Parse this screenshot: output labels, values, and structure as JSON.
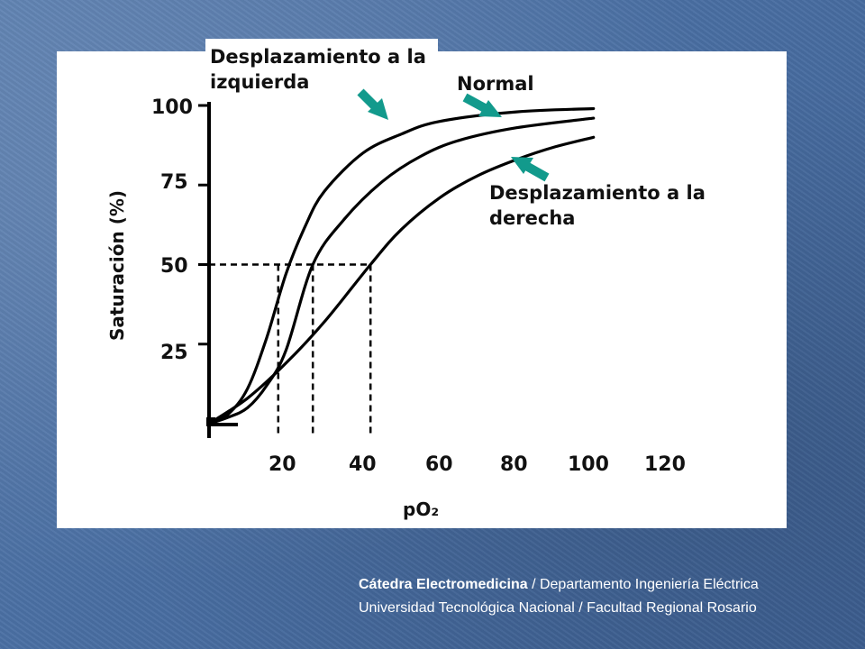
{
  "chart_data": {
    "type": "line",
    "xlabel": "pO₂",
    "ylabel": "Saturación (%)",
    "x_ticks": [
      "20",
      "40",
      "60",
      "80",
      "100",
      "120"
    ],
    "y_ticks": [
      "100",
      "75",
      "50",
      "25"
    ],
    "xlim": [
      0,
      120
    ],
    "ylim": [
      0,
      100
    ],
    "grid": false,
    "series": [
      {
        "name": "Desplazamiento a la izquierda",
        "x": [
          0,
          5,
          10,
          15,
          20,
          25,
          30,
          40,
          50,
          60,
          80,
          100
        ],
        "y": [
          0,
          3,
          11,
          27,
          47,
          62,
          73,
          85,
          91,
          95,
          98,
          99
        ]
      },
      {
        "name": "Normal",
        "x": [
          0,
          5,
          10,
          15,
          20,
          27,
          35,
          45,
          55,
          65,
          80,
          100
        ],
        "y": [
          0,
          2,
          5,
          12,
          23,
          50,
          64,
          76,
          84,
          89,
          93,
          96
        ]
      },
      {
        "name": "Desplazamiento a la derecha",
        "x": [
          0,
          10,
          20,
          30,
          42,
          50,
          60,
          70,
          80,
          90,
          100
        ],
        "y": [
          0,
          8,
          19,
          32,
          50,
          61,
          71,
          78,
          83,
          87,
          90
        ]
      }
    ],
    "p50_markers": [
      {
        "x": 18,
        "y": 50
      },
      {
        "x": 27,
        "y": 50
      },
      {
        "x": 42,
        "y": 50
      }
    ],
    "annotations": [
      {
        "text": [
          "Desplazamiento a la",
          "izquierda"
        ],
        "arrow_color": "#129a8c"
      },
      {
        "text": [
          "Normal"
        ],
        "arrow_color": "#129a8c"
      },
      {
        "text": [
          "Desplazamiento a la",
          "derecha"
        ],
        "arrow_color": "#129a8c"
      }
    ]
  },
  "footer": {
    "line1_bold": "Cátedra Electromedicina",
    "line1_rest": " / Departamento Ingeniería Eléctrica",
    "line2": "Universidad Tecnológica Nacional / Facultad Regional Rosario"
  }
}
